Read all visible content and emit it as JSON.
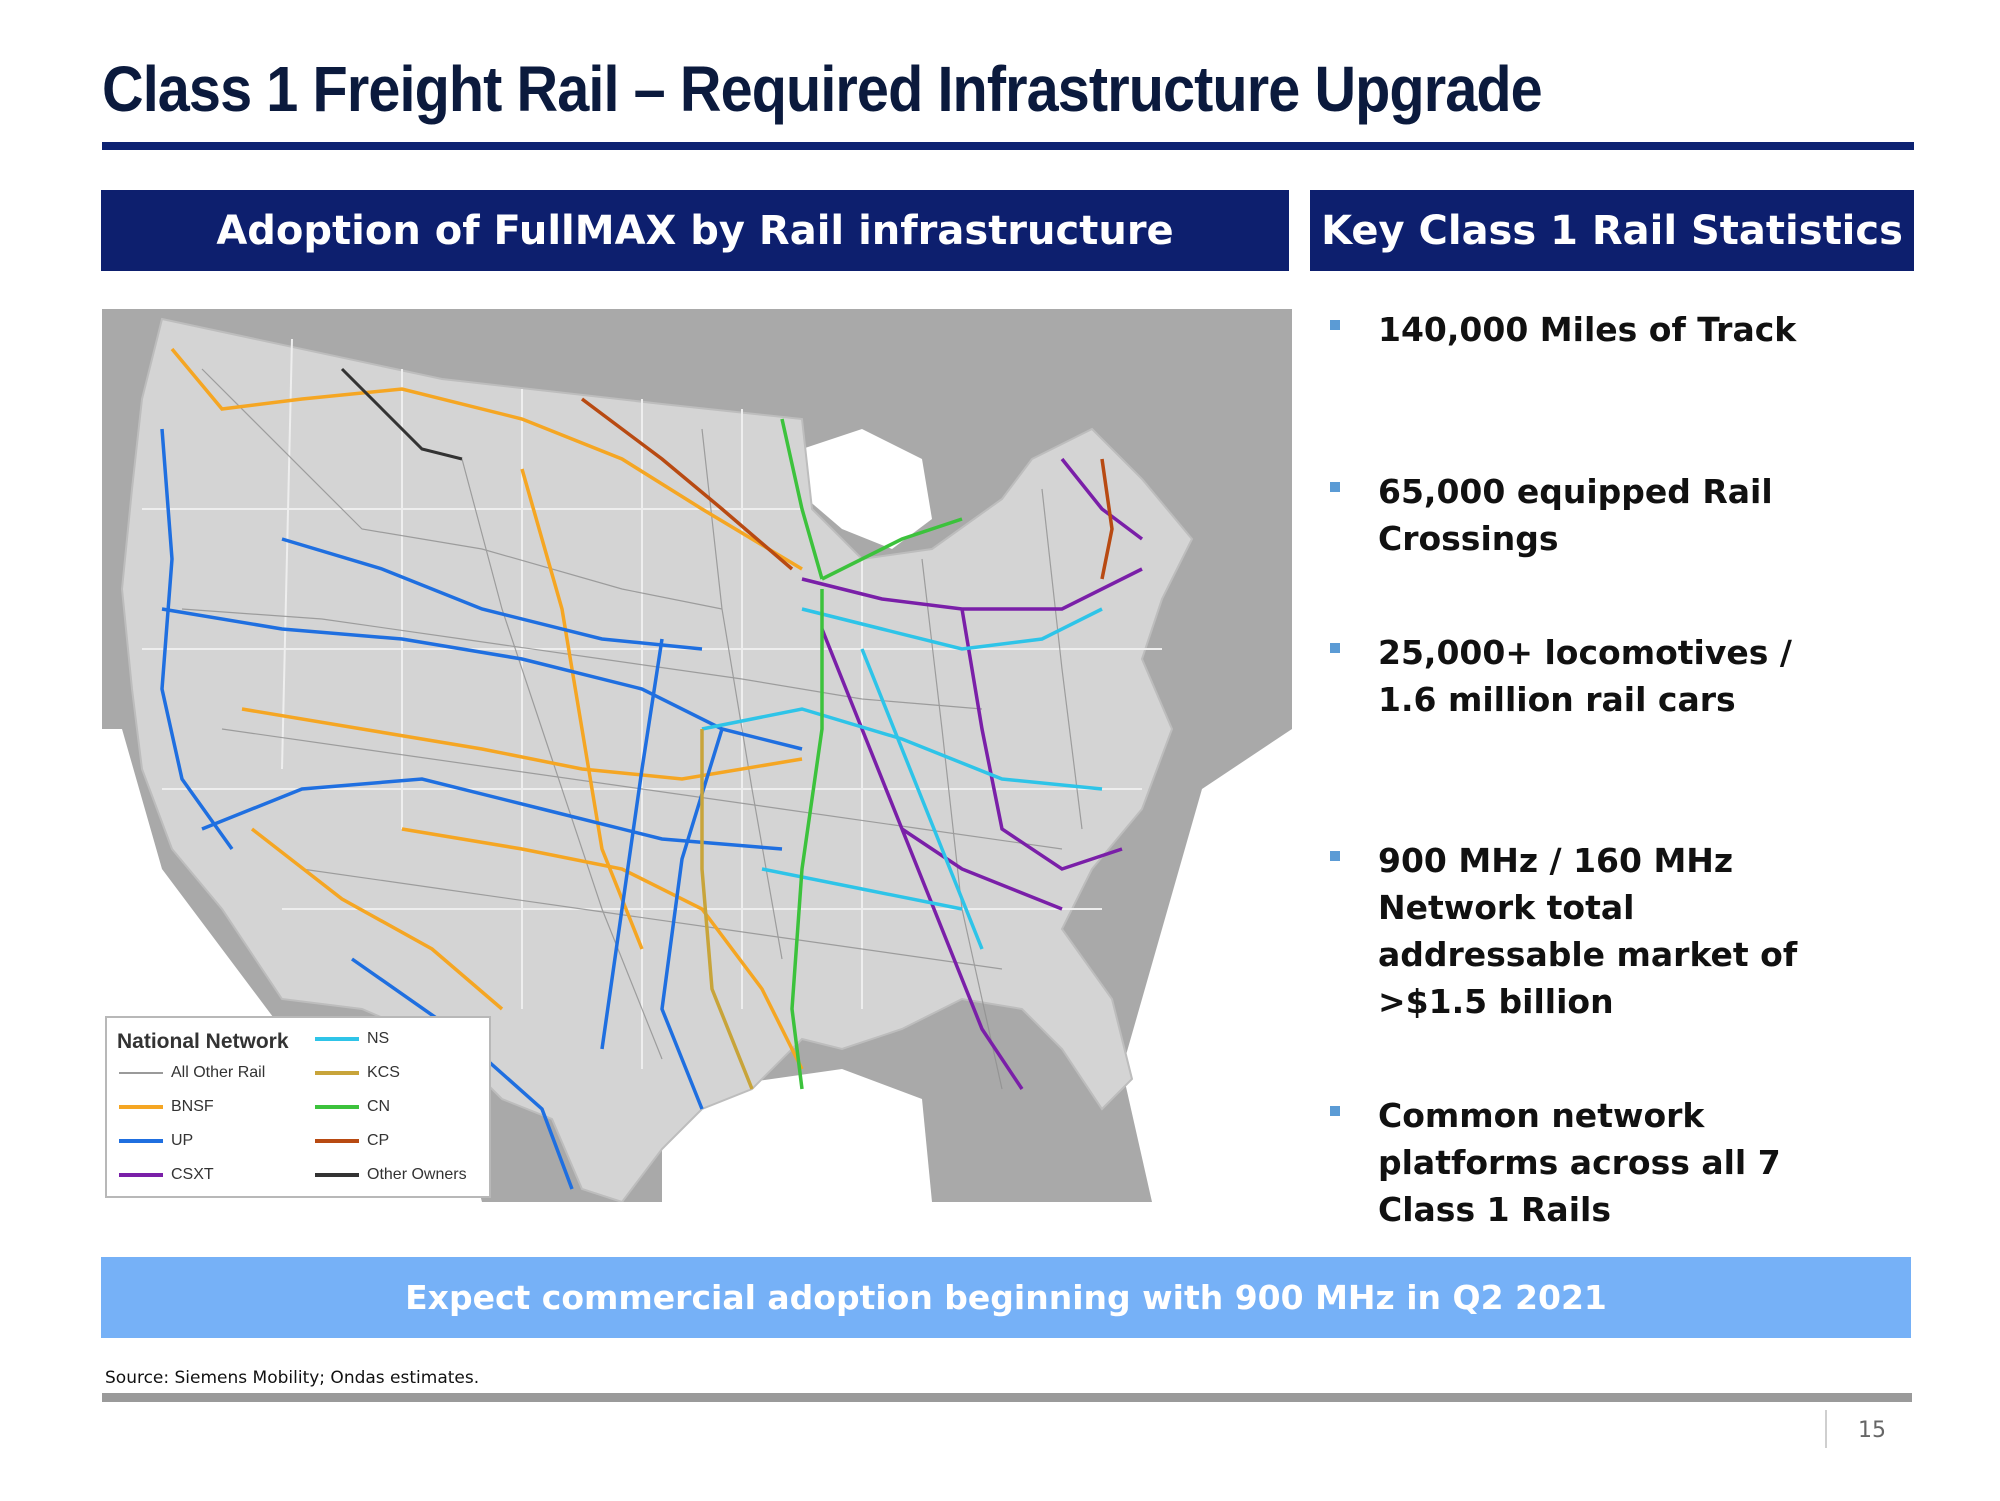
{
  "title": "Class 1 Freight Rail – Required Infrastructure Upgrade",
  "left_header": "Adoption of FullMAX by Rail infrastructure",
  "right_header": "Key Class 1 Rail Statistics",
  "map": {
    "legend": {
      "title": "National Network",
      "items": [
        {
          "label": "All Other Rail",
          "color": "#9a9a9a"
        },
        {
          "label": "BNSF",
          "color": "#f5a623"
        },
        {
          "label": "UP",
          "color": "#1f6fe0"
        },
        {
          "label": "CSXT",
          "color": "#7a1fa8"
        },
        {
          "label": "NS",
          "color": "#2ec4e8"
        },
        {
          "label": "KCS",
          "color": "#c8a43a"
        },
        {
          "label": "CN",
          "color": "#3cc23c"
        },
        {
          "label": "CP",
          "color": "#b84a12"
        },
        {
          "label": "Other Owners",
          "color": "#333333"
        }
      ]
    }
  },
  "stats": [
    {
      "text": "140,000 Miles of Track"
    },
    {
      "text": "65,000 equipped Rail Crossings"
    },
    {
      "text": "25,000+ locomotives / 1.6 million rail cars"
    },
    {
      "text": "900 MHz / 160 MHz Network total addressable market of >$1.5 billion"
    },
    {
      "text": "Common network platforms across all 7 Class 1 Rails"
    }
  ],
  "banner": "Expect commercial adoption beginning with 900 MHz in Q2 2021",
  "source": "Source: Siemens Mobility; Ondas estimates.",
  "page_number": "15"
}
